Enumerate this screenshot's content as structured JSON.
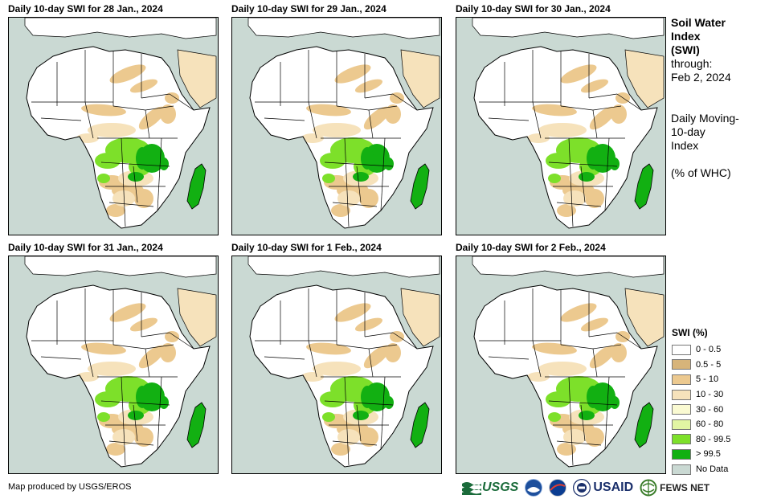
{
  "panels": [
    {
      "title": "Daily 10-day  SWI for 28 Jan., 2024"
    },
    {
      "title": "Daily 10-day  SWI for 29 Jan., 2024"
    },
    {
      "title": "Daily 10-day  SWI for 30 Jan., 2024"
    },
    {
      "title": "Daily 10-day  SWI for 31 Jan., 2024"
    },
    {
      "title": "Daily 10-day  SWI for 1 Feb., 2024"
    },
    {
      "title": "Daily 10-day  SWI for 2 Feb., 2024"
    }
  ],
  "side": {
    "title": "Soil Water\nIndex\n(SWI)",
    "through": "through:\nFeb 2, 2024",
    "desc": "Daily Moving-\n10-day\nIndex",
    "unit": "(% of WHC)"
  },
  "legend": {
    "title": "SWI (%)",
    "items": [
      {
        "label": "0 - 0.5",
        "color": "#ffffff"
      },
      {
        "label": "0.5 - 5",
        "color": "#d7b47a"
      },
      {
        "label": "5 - 10",
        "color": "#ecc98f"
      },
      {
        "label": "10 - 30",
        "color": "#f6e2bb"
      },
      {
        "label": "30 - 60",
        "color": "#fafad2"
      },
      {
        "label": "60 - 80",
        "color": "#e2f5a3"
      },
      {
        "label": "80 - 99.5",
        "color": "#7de02a"
      },
      {
        "label": "> 99.5",
        "color": "#12b012"
      },
      {
        "label": "No Data",
        "color": "#cad9d3"
      }
    ]
  },
  "credit": "Map produced by USGS/EROS",
  "logos": {
    "usgs": "USGS",
    "usaid": "USAID",
    "fews": "FEWS NET"
  },
  "colors": {
    "ocean": "#cad9d3",
    "sahara": "#ffffff",
    "dry": "#ecc98f",
    "moderate": "#f6e2bb",
    "wet": "#7de02a",
    "saturated": "#12b012"
  }
}
